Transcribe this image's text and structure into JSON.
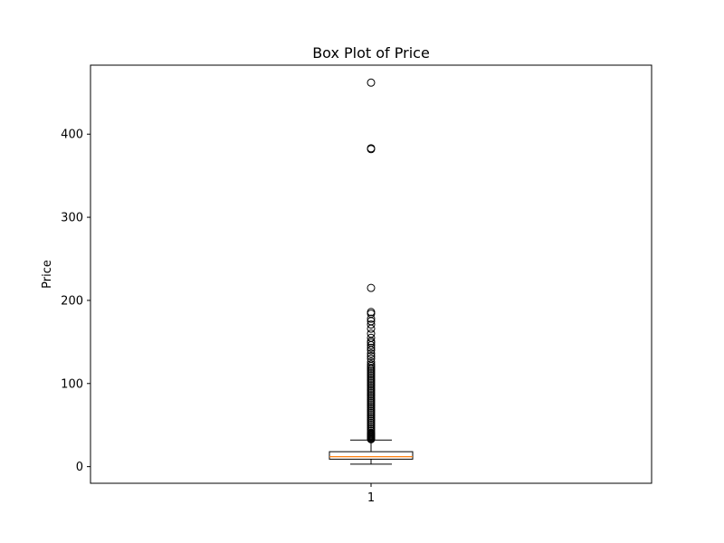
{
  "chart_data": {
    "type": "box",
    "title": "Box Plot of Price",
    "xlabel": "",
    "ylabel": "Price",
    "categories": [
      "1"
    ],
    "ylim": [
      -20,
      483
    ],
    "yticks": [
      0,
      100,
      200,
      300,
      400
    ],
    "yticklabels": [
      "0",
      "100",
      "200",
      "300",
      "400"
    ],
    "grid": false,
    "legend": "none",
    "box": {
      "min_whisker": 3,
      "q1": 9,
      "median": 12,
      "q3": 18,
      "max_whisker": 32,
      "outliers": [
        462,
        383,
        382,
        215,
        186,
        184,
        178,
        175,
        171,
        166,
        160,
        155,
        151,
        149,
        146,
        143,
        140,
        136,
        133,
        130,
        126,
        123,
        121,
        119,
        117,
        115,
        113,
        111,
        109,
        107,
        105,
        103,
        101,
        99,
        97,
        95,
        93,
        91,
        89,
        87,
        85,
        83,
        81,
        79,
        77,
        75,
        73,
        71,
        69,
        67,
        65,
        63,
        61,
        59,
        57,
        55,
        53,
        51,
        49,
        47,
        45,
        43,
        41,
        40,
        39,
        38,
        37,
        36,
        35,
        34,
        33
      ]
    },
    "colors": {
      "median": "#ff7f0e",
      "box_edge": "#000000",
      "outlier_edge": "#000000"
    }
  }
}
